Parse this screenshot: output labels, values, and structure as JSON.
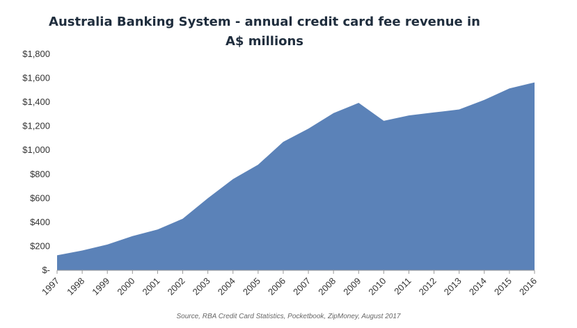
{
  "chart_data": {
    "type": "area",
    "title": "Australia Banking System - annual credit card fee revenue in A$ millions",
    "xlabel": "",
    "ylabel": "",
    "categories": [
      "1997",
      "1998",
      "1999",
      "2000",
      "2001",
      "2002",
      "2003",
      "2004",
      "2005",
      "2006",
      "2007",
      "2008",
      "2009",
      "2010",
      "2011",
      "2012",
      "2013",
      "2014",
      "2015",
      "2016"
    ],
    "series": [
      {
        "values": [
          125,
          165,
          215,
          285,
          340,
          430,
          600,
          760,
          880,
          1070,
          1180,
          1310,
          1395,
          1245,
          1290,
          1315,
          1340,
          1420,
          1515,
          1565
        ]
      }
    ],
    "y_tick_labels": [
      "$-",
      "$200",
      "$400",
      "$600",
      "$800",
      "$1,000",
      "$1,200",
      "$1,400",
      "$1,600",
      "$1,800"
    ],
    "y_tick_values": [
      0,
      200,
      400,
      600,
      800,
      1000,
      1200,
      1400,
      1600,
      1800
    ],
    "ylim": [
      0,
      1800
    ],
    "grid": false,
    "colors": {
      "area": "#5b82b8",
      "axis": "#999999"
    }
  },
  "source": "Source, RBA Credit Card Statistics, Pocketbook, ZipMoney, August 2017"
}
